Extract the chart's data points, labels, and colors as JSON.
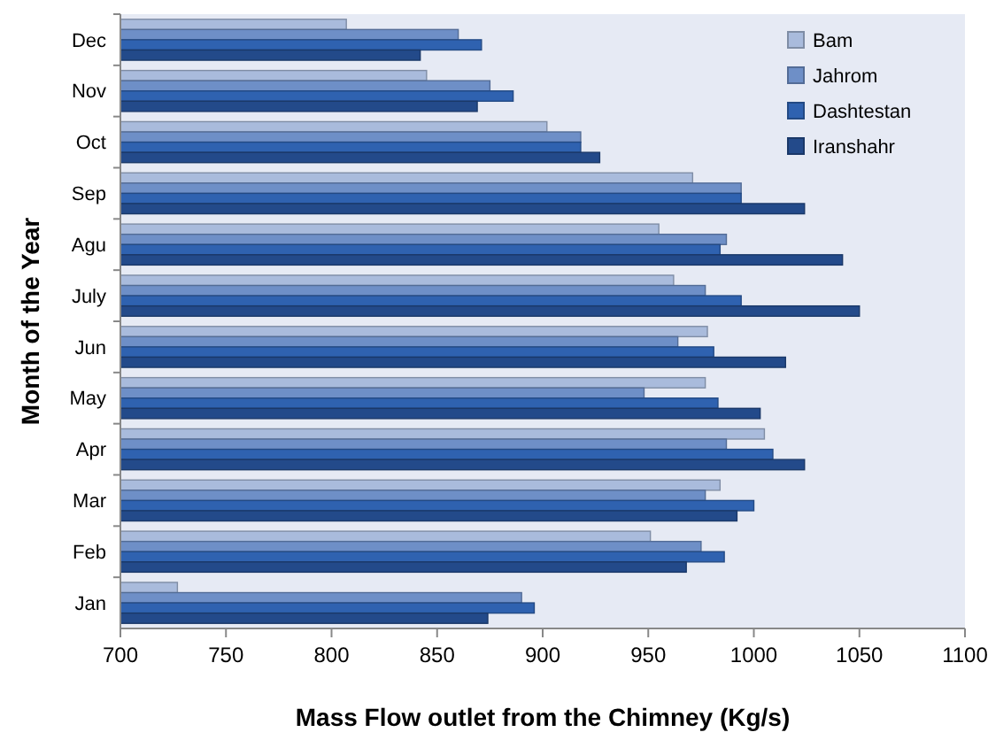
{
  "chart_data": {
    "type": "bar",
    "orientation": "horizontal",
    "xlabel": "Mass Flow outlet from the Chimney  (Kg/s)",
    "ylabel": "Month of the Year",
    "categories": [
      "Dec",
      "Nov",
      "Oct",
      "Sep",
      "Agu",
      "July",
      "Jun",
      "May",
      "Apr",
      "Mar",
      "Feb",
      "Jan"
    ],
    "series": [
      {
        "name": "Bam",
        "color": "#a9bbdc",
        "values": [
          807,
          845,
          902,
          971,
          955,
          962,
          978,
          977,
          1005,
          984,
          951,
          727
        ]
      },
      {
        "name": "Jahrom",
        "color": "#6e8fc7",
        "values": [
          860,
          875,
          918,
          994,
          987,
          977,
          964,
          948,
          987,
          977,
          975,
          890
        ]
      },
      {
        "name": "Dashtestan",
        "color": "#2f62b0",
        "values": [
          871,
          886,
          918,
          994,
          984,
          994,
          981,
          983,
          1009,
          1000,
          986,
          896
        ]
      },
      {
        "name": "Iranshahr",
        "color": "#234a8a",
        "values": [
          842,
          869,
          927,
          1024,
          1042,
          1050,
          1015,
          1003,
          1024,
          992,
          968,
          874
        ]
      }
    ],
    "xlim": [
      700,
      1100
    ],
    "xticks": [
      700,
      750,
      800,
      850,
      900,
      950,
      1000,
      1050,
      1100
    ],
    "grid": false,
    "legend": "top right"
  }
}
